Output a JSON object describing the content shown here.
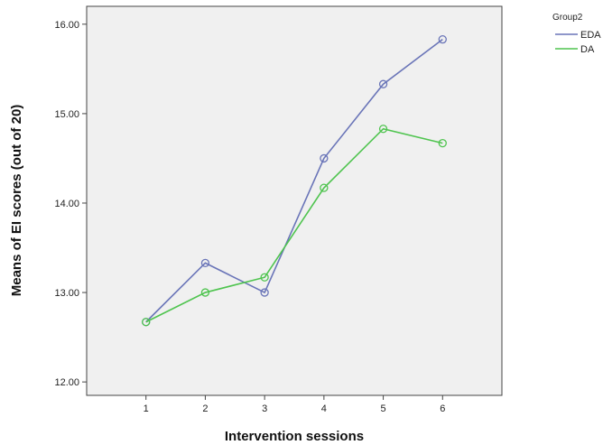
{
  "chart_data": {
    "type": "line",
    "xlabel": "Intervention sessions",
    "ylabel": "Means of EI scores (out of 20)",
    "x": [
      1,
      2,
      3,
      4,
      5,
      6
    ],
    "xlim": [
      0,
      7
    ],
    "ylim": [
      11.85,
      16.2
    ],
    "yticks": [
      "12.00",
      "13.00",
      "14.00",
      "15.00",
      "16.00"
    ],
    "grid": false,
    "legend_title": "Group2",
    "legend_position": "top-right",
    "series": [
      {
        "name": "EDA",
        "color": "#6a75b8",
        "values": [
          12.67,
          13.33,
          13.0,
          14.5,
          15.33,
          15.83
        ]
      },
      {
        "name": "DA",
        "color": "#4fc44f",
        "values": [
          12.67,
          13.0,
          13.17,
          14.17,
          14.83,
          14.67
        ]
      }
    ]
  }
}
